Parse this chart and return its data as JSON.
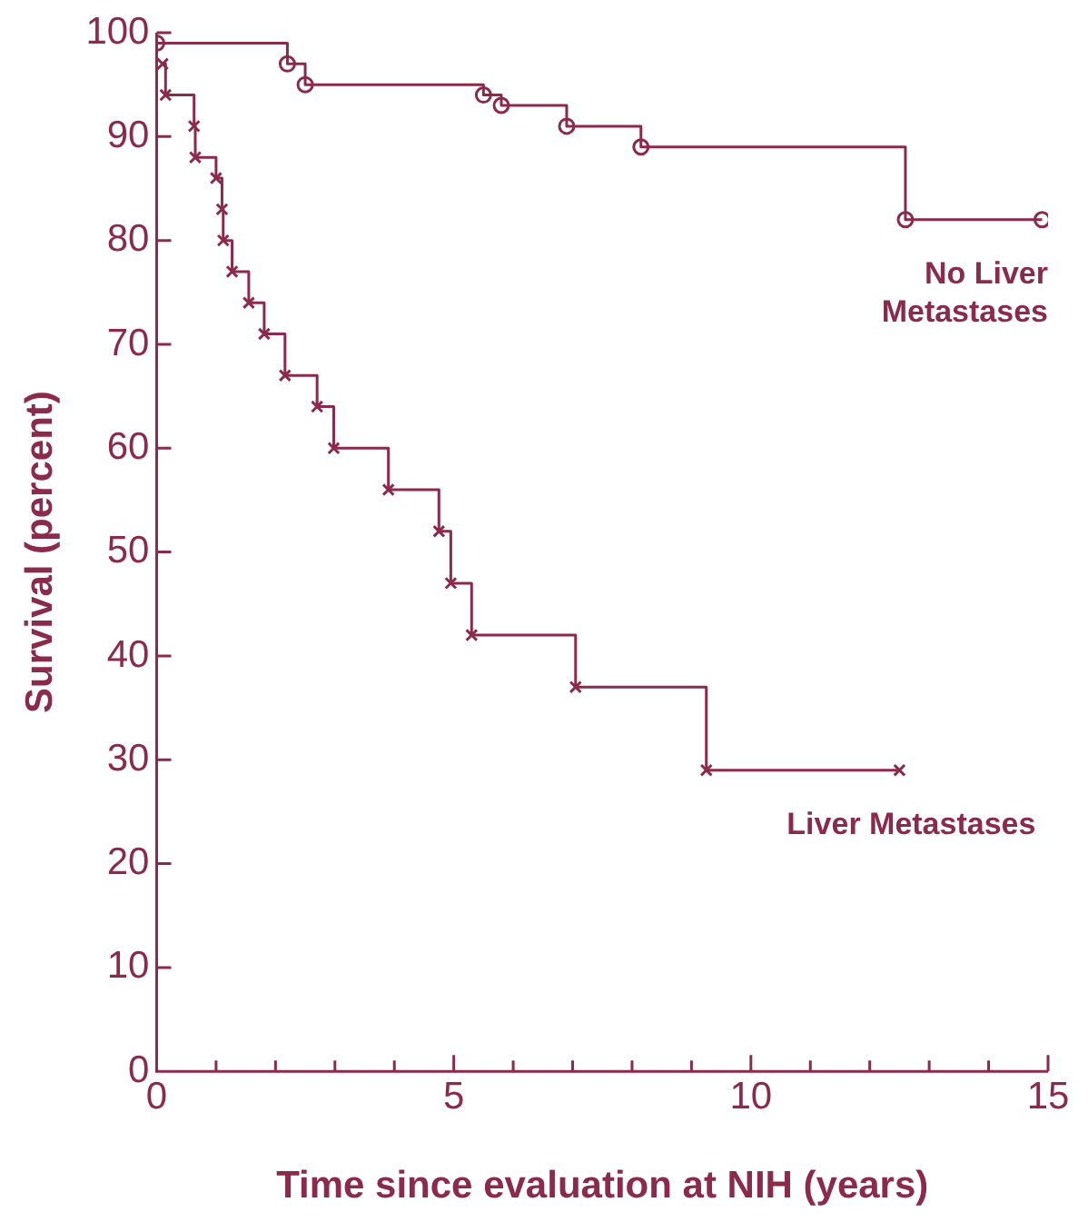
{
  "chart_data": {
    "type": "step",
    "xlabel": "Time since evaluation at NIH (years)",
    "ylabel": "Survival (percent)",
    "xlim": [
      0,
      15
    ],
    "xticks": [
      0,
      {
        "value": 1,
        "label": null
      },
      {
        "value": 2,
        "label": null
      },
      {
        "value": 3,
        "label": null
      },
      {
        "value": 4,
        "label": null
      },
      5,
      {
        "value": 6,
        "label": null
      },
      {
        "value": 7,
        "label": null
      },
      {
        "value": 8,
        "label": null
      },
      {
        "value": 9,
        "label": null
      },
      10,
      {
        "value": 11,
        "label": null
      },
      {
        "value": 12,
        "label": null
      },
      {
        "value": 13,
        "label": null
      },
      {
        "value": 14,
        "label": null
      },
      15
    ],
    "ylim": [
      0,
      100
    ],
    "yticks": [
      0,
      10,
      20,
      30,
      40,
      50,
      60,
      70,
      80,
      90,
      100
    ],
    "series": [
      {
        "name": "No Liver Metastases",
        "color": "#8b2a4a",
        "marker": "circle",
        "x": [
          0,
          2.2,
          2.5,
          5.5,
          5.8,
          6.9,
          8.15,
          12.6,
          14.9
        ],
        "values": [
          99,
          97,
          95,
          94,
          93,
          91,
          89,
          82,
          82
        ]
      },
      {
        "name": "Liver Metastases",
        "color": "#8b2a4a",
        "marker": "cross",
        "x": [
          0.1,
          0.15,
          0.63,
          0.65,
          1.0,
          1.1,
          1.12,
          1.27,
          1.55,
          1.81,
          2.16,
          2.7,
          2.98,
          3.9,
          4.75,
          4.95,
          5.3,
          7.05,
          9.25,
          12.5
        ],
        "values": [
          97,
          94,
          91,
          88,
          86,
          83,
          80,
          77,
          74,
          71,
          67,
          64,
          60,
          56,
          52,
          47,
          42,
          37,
          29,
          29
        ]
      }
    ]
  }
}
